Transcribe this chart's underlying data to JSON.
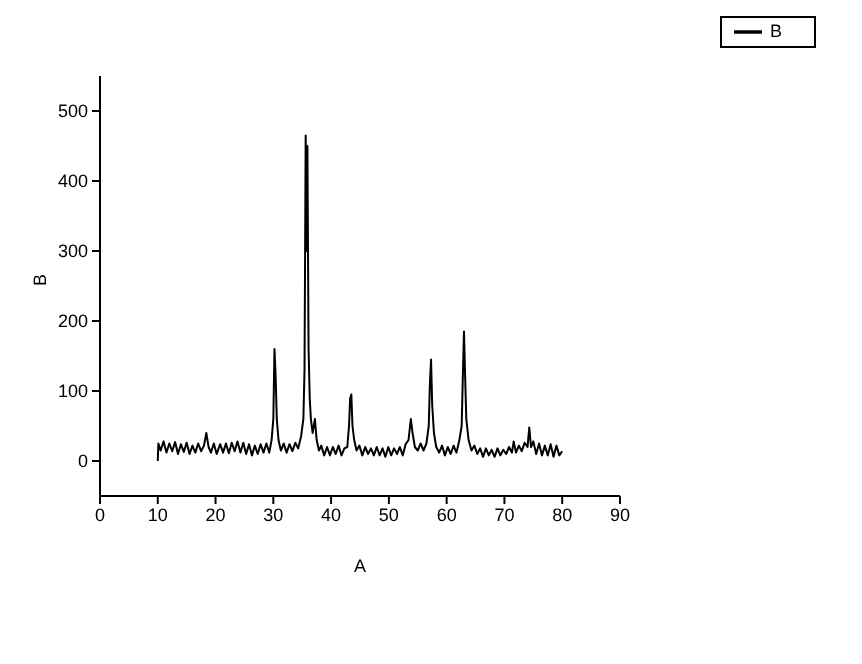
{
  "chart_data": {
    "type": "line",
    "xlabel": "A",
    "ylabel": "B",
    "xlim": [
      0,
      90
    ],
    "xticks": [
      0,
      10,
      20,
      30,
      40,
      50,
      60,
      70,
      80,
      90
    ],
    "ylim": [
      -50,
      550
    ],
    "yticks": [
      0,
      100,
      200,
      300,
      400,
      500
    ],
    "grid": false,
    "legend": "top right",
    "marker": "none",
    "line_style": "solid",
    "series": [
      {
        "name": "B",
        "color": "#000000",
        "x": [
          10,
          10.1,
          10.5,
          11,
          11.5,
          12,
          12.5,
          13,
          13.5,
          14,
          14.5,
          15,
          15.5,
          16,
          16.5,
          17,
          17.5,
          18,
          18.4,
          18.8,
          19.2,
          19.7,
          20.2,
          20.8,
          21.3,
          21.8,
          22.3,
          22.8,
          23.3,
          23.8,
          24.3,
          24.8,
          25.3,
          25.8,
          26.3,
          26.8,
          27.3,
          27.8,
          28.3,
          28.8,
          29.3,
          29.7,
          30,
          30.2,
          30.4,
          30.6,
          30.9,
          31.3,
          31.8,
          32.3,
          32.8,
          33.3,
          33.8,
          34.3,
          34.8,
          35.2,
          35.4,
          35.6,
          35.8,
          35.9,
          36.1,
          36.3,
          36.5,
          36.8,
          37.2,
          37.5,
          37.9,
          38.3,
          38.8,
          39.3,
          39.8,
          40.3,
          40.8,
          41.3,
          41.8,
          42.3,
          42.8,
          43.1,
          43.3,
          43.5,
          43.7,
          44,
          44.4,
          44.9,
          45.4,
          45.9,
          46.4,
          46.9,
          47.4,
          47.9,
          48.4,
          48.9,
          49.4,
          49.9,
          50.4,
          50.9,
          51.4,
          51.9,
          52.4,
          52.9,
          53.4,
          53.8,
          54.1,
          54.5,
          55,
          55.5,
          56,
          56.5,
          56.9,
          57.1,
          57.3,
          57.5,
          57.8,
          58.2,
          58.7,
          59.2,
          59.7,
          60.2,
          60.7,
          61.2,
          61.7,
          62.2,
          62.6,
          62.8,
          63,
          63.2,
          63.4,
          63.8,
          64.3,
          64.8,
          65.3,
          65.8,
          66.3,
          66.8,
          67.3,
          67.8,
          68.3,
          68.8,
          69.3,
          69.8,
          70.3,
          70.8,
          71.3,
          71.6,
          72,
          72.5,
          73,
          73.5,
          74,
          74.3,
          74.6,
          75,
          75.5,
          76,
          76.5,
          77,
          77.5,
          78,
          78.5,
          79,
          79.5,
          80
        ],
        "values": [
          0,
          25,
          15,
          28,
          12,
          25,
          14,
          27,
          10,
          24,
          13,
          26,
          10,
          22,
          12,
          25,
          14,
          22,
          40,
          20,
          12,
          25,
          10,
          24,
          12,
          25,
          11,
          26,
          14,
          28,
          12,
          26,
          10,
          24,
          8,
          22,
          10,
          24,
          12,
          25,
          12,
          30,
          60,
          160,
          120,
          60,
          30,
          15,
          25,
          12,
          24,
          14,
          26,
          18,
          35,
          60,
          130,
          465,
          300,
          450,
          160,
          90,
          60,
          40,
          60,
          30,
          15,
          22,
          8,
          20,
          8,
          20,
          10,
          22,
          8,
          18,
          20,
          50,
          90,
          95,
          50,
          30,
          15,
          22,
          8,
          20,
          10,
          18,
          8,
          20,
          8,
          18,
          6,
          20,
          8,
          18,
          10,
          20,
          8,
          24,
          30,
          60,
          40,
          20,
          15,
          25,
          15,
          25,
          50,
          110,
          145,
          80,
          40,
          20,
          12,
          22,
          8,
          20,
          10,
          22,
          12,
          30,
          50,
          120,
          185,
          120,
          60,
          30,
          15,
          22,
          10,
          18,
          6,
          18,
          8,
          16,
          6,
          18,
          8,
          16,
          10,
          20,
          12,
          28,
          12,
          22,
          14,
          26,
          20,
          48,
          20,
          28,
          10,
          25,
          8,
          22,
          8,
          24,
          6,
          22,
          8,
          14
        ]
      }
    ]
  }
}
